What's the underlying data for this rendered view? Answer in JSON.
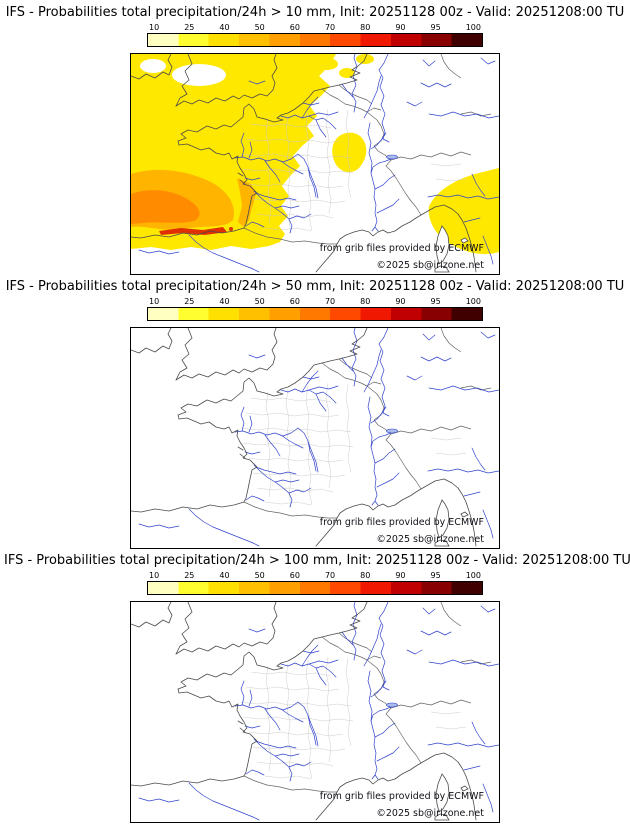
{
  "page": {
    "background": "#ffffff"
  },
  "panels": [
    {
      "threshold_mm": 10,
      "title": "IFS - Probabilities total precipitation/24h > 10 mm, Init: 20251128 00z - Valid: 20251208:00 TU",
      "watermark_line1": "from grib files provided by ECMWF",
      "watermark_line2": "©2025 sb@irizone.net",
      "has_precip_shading": true
    },
    {
      "threshold_mm": 50,
      "title": "IFS - Probabilities total precipitation/24h > 50 mm, Init: 20251128 00z - Valid: 20251208:00 TU",
      "watermark_line1": "from grib files provided by ECMWF",
      "watermark_line2": "©2025 sb@irizone.net",
      "has_precip_shading": false
    },
    {
      "threshold_mm": 100,
      "title": "IFS - Probabilities total precipitation/24h > 100 mm, Init: 20251128 00z - Valid: 20251208:00 TU",
      "watermark_line1": "from grib files provided by ECMWF",
      "watermark_line2": "©2025 sb@irizone.net",
      "has_precip_shading": false
    }
  ],
  "colorbar": {
    "unit": "%",
    "ticks": [
      "10",
      "25",
      "40",
      "50",
      "60",
      "70",
      "80",
      "90",
      "95",
      "100"
    ],
    "colors": [
      "#ffffc0",
      "#ffff30",
      "#ffe000",
      "#ffc000",
      "#ffa000",
      "#ff7800",
      "#ff4800",
      "#f01800",
      "#c00000",
      "#880000",
      "#400000"
    ]
  },
  "map": {
    "region": "France and surrounding Europe",
    "sea_land_color": "#ffffff",
    "coast_color": "#4a4a4a",
    "border_color": "#666666",
    "department_border_color": "#c6c6c6",
    "river_color": "#3344cc",
    "precip_colors": {
      "p10_25": "#ffe800",
      "p25_40": "#ffb400",
      "p40_60": "#ff8c00",
      "p60_plus": "#e03000"
    }
  }
}
